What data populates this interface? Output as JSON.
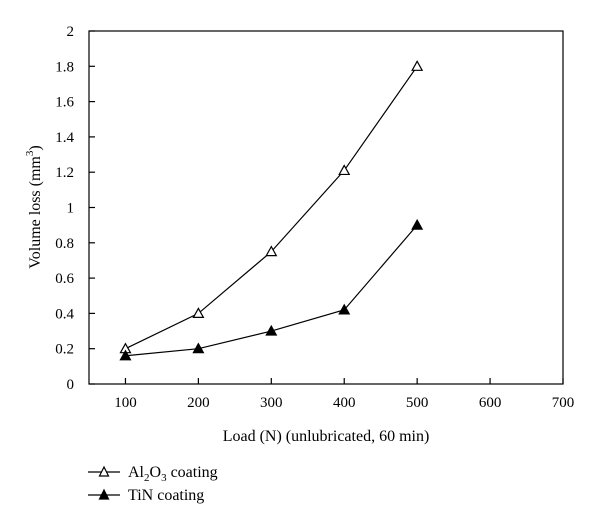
{
  "chart_data": {
    "type": "line",
    "title": "",
    "xlabel": "Load (N) (unlubricated, 60 min)",
    "ylabel": {
      "main": "Volume loss (mm",
      "sup": "3",
      "close": ")"
    },
    "xlim": [
      50,
      700
    ],
    "ylim": [
      0,
      2
    ],
    "x_ticks": [
      "100",
      "200",
      "300",
      "400",
      "500",
      "600",
      "700"
    ],
    "y_ticks": [
      "0",
      "0.2",
      "0.4",
      "0.6",
      "0.8",
      "1",
      "1.2",
      "1.4",
      "1.6",
      "1.8",
      "2"
    ],
    "grid": false,
    "legend_position": "bottom-left, below plot",
    "series": [
      {
        "name_parts": [
          "Al",
          "2",
          "O",
          "3",
          " coating"
        ],
        "marker": "open-triangle",
        "color": "#000000",
        "x": [
          100,
          200,
          300,
          400,
          500
        ],
        "y": [
          0.2,
          0.4,
          0.75,
          1.21,
          1.8
        ]
      },
      {
        "name": "TiN coating",
        "marker": "filled-triangle",
        "color": "#000000",
        "x": [
          100,
          200,
          300,
          400,
          500
        ],
        "y": [
          0.16,
          0.2,
          0.3,
          0.42,
          0.9
        ]
      }
    ]
  }
}
